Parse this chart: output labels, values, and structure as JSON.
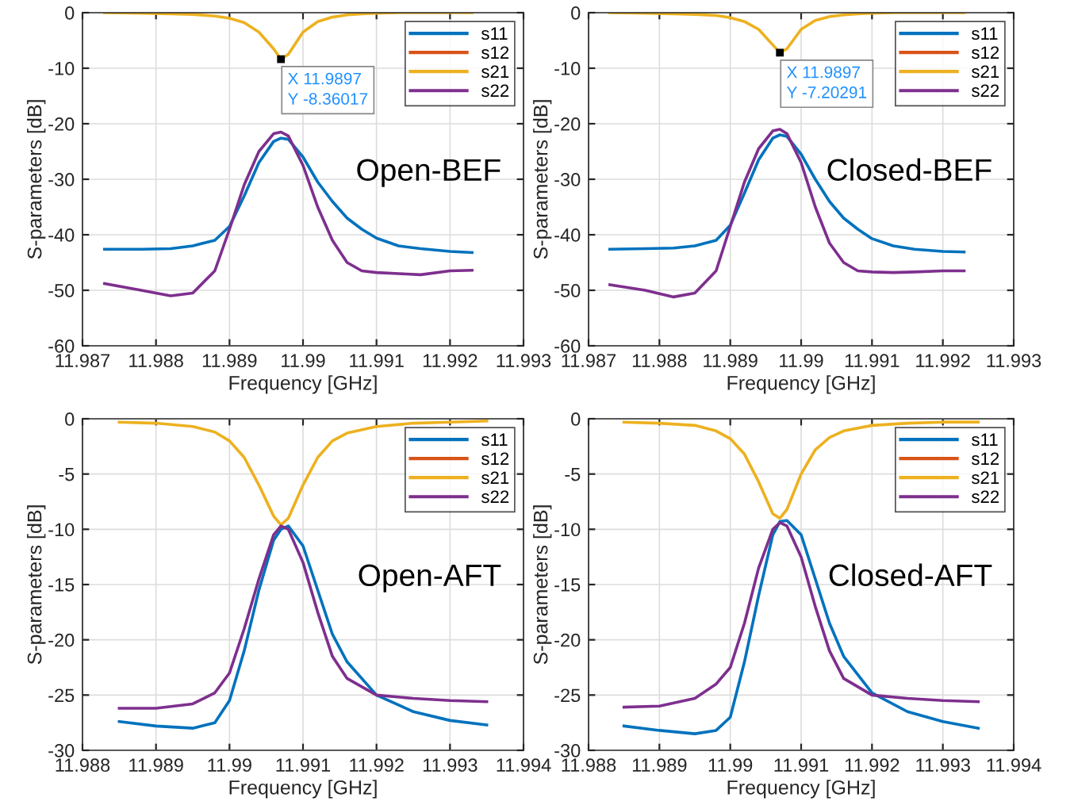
{
  "chart_data": [
    {
      "type": "line",
      "xlabel": "Frequency [GHz]",
      "ylabel": "S-parameters [dB]",
      "grid": true,
      "legend": "top right",
      "x": [
        11.9873,
        11.9878,
        11.9882,
        11.9885,
        11.9888,
        11.989,
        11.9892,
        11.9894,
        11.9896,
        11.9897,
        11.9898,
        11.99,
        11.9902,
        11.9904,
        11.9906,
        11.9908,
        11.991,
        11.9913,
        11.9916,
        11.992,
        11.9923
      ],
      "xlim": [
        11.987,
        11.993
      ],
      "xticks": [
        11.987,
        11.988,
        11.989,
        11.99,
        11.991,
        11.992,
        11.993
      ],
      "ylim": [
        -60,
        0
      ],
      "yticks": [
        -60,
        -50,
        -40,
        -30,
        -20,
        -10,
        0
      ],
      "series": [
        {
          "name": "s11",
          "color": "#0072bd",
          "values": [
            -42.6,
            -42.6,
            -42.5,
            -42.0,
            -41.0,
            -38.5,
            -33,
            -27,
            -23.2,
            -22.6,
            -22.8,
            -26,
            -30.5,
            -34,
            -37,
            -39,
            -40.6,
            -42.0,
            -42.5,
            -43,
            -43.2
          ]
        },
        {
          "name": "s12",
          "color": "#d95319",
          "values": [
            null,
            null,
            null,
            null,
            null,
            null,
            null,
            null,
            null,
            null,
            null,
            null,
            null,
            null,
            null,
            null,
            null,
            null,
            null,
            null,
            null
          ]
        },
        {
          "name": "s21",
          "color": "#edb120",
          "values": [
            0,
            -0.1,
            -0.2,
            -0.3,
            -0.6,
            -1.0,
            -1.8,
            -3.5,
            -6.5,
            -8.36,
            -7.5,
            -3.5,
            -1.6,
            -0.8,
            -0.4,
            -0.2,
            -0.1,
            0,
            0,
            0,
            0
          ]
        },
        {
          "name": "s22",
          "color": "#7e2f8e",
          "values": [
            -48.8,
            -50,
            -51,
            -50.5,
            -46.5,
            -39,
            -31,
            -25,
            -21.8,
            -21.5,
            -22.2,
            -27.5,
            -35,
            -41,
            -45,
            -46.5,
            -46.8,
            -47,
            -47.2,
            -46.5,
            -46.4
          ]
        }
      ],
      "annotations": [
        {
          "text": "X 11.9897\nY -8.36017",
          "x": 11.9897,
          "y": -8.36017
        },
        "Open-BEF"
      ]
    },
    {
      "type": "line",
      "xlabel": "Frequency [GHz]",
      "ylabel": "S-parameters [dB]",
      "grid": true,
      "legend": "top right",
      "x": [
        11.9873,
        11.9878,
        11.9882,
        11.9885,
        11.9888,
        11.989,
        11.9892,
        11.9894,
        11.9896,
        11.9897,
        11.9898,
        11.99,
        11.9902,
        11.9904,
        11.9906,
        11.9908,
        11.991,
        11.9913,
        11.9916,
        11.992,
        11.9923
      ],
      "xlim": [
        11.987,
        11.993
      ],
      "xticks": [
        11.987,
        11.988,
        11.989,
        11.99,
        11.991,
        11.992,
        11.993
      ],
      "ylim": [
        -60,
        0
      ],
      "yticks": [
        -60,
        -50,
        -40,
        -30,
        -20,
        -10,
        0
      ],
      "series": [
        {
          "name": "s11",
          "color": "#0072bd",
          "values": [
            -42.6,
            -42.5,
            -42.4,
            -42,
            -41,
            -38.3,
            -32.5,
            -26.5,
            -22.6,
            -22,
            -22.3,
            -25.5,
            -30,
            -34,
            -37,
            -39,
            -40.7,
            -42,
            -42.6,
            -43,
            -43.1
          ]
        },
        {
          "name": "s12",
          "color": "#d95319",
          "values": [
            null,
            null,
            null,
            null,
            null,
            null,
            null,
            null,
            null,
            null,
            null,
            null,
            null,
            null,
            null,
            null,
            null,
            null,
            null,
            null,
            null
          ]
        },
        {
          "name": "s21",
          "color": "#edb120",
          "values": [
            0,
            -0.1,
            -0.2,
            -0.3,
            -0.5,
            -0.9,
            -1.6,
            -3,
            -5.8,
            -7.2,
            -6.5,
            -3,
            -1.4,
            -0.7,
            -0.4,
            -0.2,
            -0.1,
            0,
            0,
            0,
            0
          ]
        },
        {
          "name": "s22",
          "color": "#7e2f8e",
          "values": [
            -49,
            -50,
            -51.2,
            -50.5,
            -46.5,
            -38.5,
            -30.5,
            -24.5,
            -21.3,
            -21,
            -21.8,
            -27,
            -35,
            -41.5,
            -45,
            -46.5,
            -46.7,
            -46.8,
            -46.7,
            -46.5,
            -46.5
          ]
        }
      ],
      "annotations": [
        {
          "text": "X 11.9897\nY -7.20291",
          "x": 11.9897,
          "y": -7.20291
        },
        "Closed-BEF"
      ]
    },
    {
      "type": "line",
      "xlabel": "Frequency [GHz]",
      "ylabel": "S-parameters [dB]",
      "grid": true,
      "legend": "top right",
      "x": [
        11.9885,
        11.989,
        11.9895,
        11.9898,
        11.99,
        11.9902,
        11.9904,
        11.9906,
        11.9907,
        11.9908,
        11.991,
        11.9912,
        11.9914,
        11.9916,
        11.992,
        11.9925,
        11.993,
        11.9935
      ],
      "xlim": [
        11.988,
        11.994
      ],
      "xticks": [
        11.988,
        11.989,
        11.99,
        11.991,
        11.992,
        11.993,
        11.994
      ],
      "ylim": [
        -30,
        0
      ],
      "yticks": [
        -30,
        -25,
        -20,
        -15,
        -10,
        -5,
        0
      ],
      "series": [
        {
          "name": "s11",
          "color": "#0072bd",
          "values": [
            -27.4,
            -27.8,
            -28,
            -27.5,
            -25.5,
            -21,
            -15.5,
            -11,
            -10,
            -9.7,
            -11.5,
            -15.5,
            -19.5,
            -22,
            -25,
            -26.5,
            -27.3,
            -27.7
          ]
        },
        {
          "name": "s12",
          "color": "#d95319",
          "values": [
            null,
            null,
            null,
            null,
            null,
            null,
            null,
            null,
            null,
            null,
            null,
            null,
            null,
            null,
            null,
            null,
            null,
            null
          ]
        },
        {
          "name": "s21",
          "color": "#edb120",
          "values": [
            -0.3,
            -0.4,
            -0.7,
            -1.2,
            -2,
            -3.5,
            -6,
            -8.8,
            -9.6,
            -9,
            -6,
            -3.5,
            -2,
            -1.3,
            -0.7,
            -0.4,
            -0.3,
            -0.2
          ]
        },
        {
          "name": "s22",
          "color": "#7e2f8e",
          "values": [
            -26.2,
            -26.2,
            -25.8,
            -24.8,
            -23,
            -19,
            -14.5,
            -10.5,
            -9.7,
            -10,
            -13,
            -17.5,
            -21.5,
            -23.5,
            -25,
            -25.3,
            -25.5,
            -25.6
          ]
        }
      ],
      "annotations": [
        "Open-AFT"
      ]
    },
    {
      "type": "line",
      "xlabel": "Frequency [GHz]",
      "ylabel": "S-parameters [dB]",
      "grid": true,
      "legend": "top right",
      "x": [
        11.9885,
        11.989,
        11.9895,
        11.9898,
        11.99,
        11.9902,
        11.9904,
        11.9906,
        11.9907,
        11.9908,
        11.991,
        11.9912,
        11.9914,
        11.9916,
        11.992,
        11.9925,
        11.993,
        11.9935
      ],
      "xlim": [
        11.988,
        11.994
      ],
      "xticks": [
        11.988,
        11.989,
        11.99,
        11.991,
        11.992,
        11.993,
        11.994
      ],
      "ylim": [
        -30,
        0
      ],
      "yticks": [
        -30,
        -25,
        -20,
        -15,
        -10,
        -5,
        0
      ],
      "series": [
        {
          "name": "s11",
          "color": "#0072bd",
          "values": [
            -27.8,
            -28.2,
            -28.5,
            -28.2,
            -27,
            -22,
            -16,
            -10.5,
            -9.3,
            -9.2,
            -10.5,
            -14.5,
            -18.5,
            -21.5,
            -24.8,
            -26.5,
            -27.4,
            -28
          ]
        },
        {
          "name": "s12",
          "color": "#d95319",
          "values": [
            null,
            null,
            null,
            null,
            null,
            null,
            null,
            null,
            null,
            null,
            null,
            null,
            null,
            null,
            null,
            null,
            null,
            null
          ]
        },
        {
          "name": "s21",
          "color": "#edb120",
          "values": [
            -0.3,
            -0.4,
            -0.6,
            -1.1,
            -1.8,
            -3.2,
            -5.7,
            -8.6,
            -9,
            -8.2,
            -5,
            -2.8,
            -1.7,
            -1.1,
            -0.6,
            -0.4,
            -0.3,
            -0.3
          ]
        },
        {
          "name": "s22",
          "color": "#7e2f8e",
          "values": [
            -26.1,
            -26,
            -25.3,
            -24,
            -22.5,
            -18.5,
            -13.5,
            -10,
            -9.4,
            -9.7,
            -12.5,
            -17,
            -21,
            -23.5,
            -25,
            -25.3,
            -25.5,
            -25.6
          ]
        }
      ],
      "annotations": [
        "Closed-AFT"
      ]
    }
  ]
}
